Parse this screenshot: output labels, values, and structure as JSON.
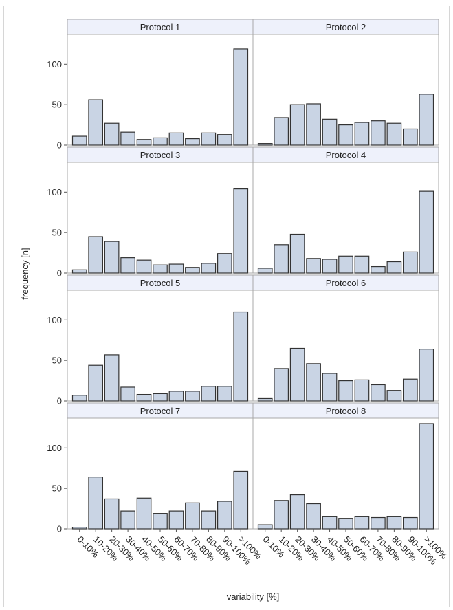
{
  "chart_data": {
    "type": "bar",
    "layout": "panel grid 2 columns x 4 rows, shared axes",
    "xlabel": "variability [%]",
    "ylabel": "frequency [n]",
    "categories": [
      "0-10%",
      "10-20%",
      "20-30%",
      "30-40%",
      "40-50%",
      "50-60%",
      "60-70%",
      "70-80%",
      "80-90%",
      "90-100%",
      ">100%"
    ],
    "ylim": [
      0,
      130
    ],
    "yticks": [
      0,
      50,
      100
    ],
    "grid": false,
    "legend": "none",
    "bar_color": "#c9d4e4",
    "bar_edge_color": "#333333",
    "strip_color": "#eef1fb",
    "panels": [
      {
        "title": "Protocol 1",
        "values": [
          11,
          56,
          27,
          16,
          7,
          9,
          15,
          8,
          15,
          13,
          119
        ]
      },
      {
        "title": "Protocol 2",
        "values": [
          2,
          34,
          50,
          51,
          32,
          25,
          28,
          30,
          27,
          20,
          63
        ]
      },
      {
        "title": "Protocol 3",
        "values": [
          4,
          45,
          39,
          19,
          16,
          10,
          11,
          7,
          12,
          24,
          104
        ]
      },
      {
        "title": "Protocol 4",
        "values": [
          6,
          35,
          48,
          18,
          17,
          21,
          21,
          8,
          14,
          26,
          101
        ]
      },
      {
        "title": "Protocol 5",
        "values": [
          7,
          44,
          57,
          17,
          8,
          9,
          12,
          12,
          18,
          18,
          110
        ]
      },
      {
        "title": "Protocol 6",
        "values": [
          3,
          40,
          65,
          46,
          34,
          25,
          26,
          20,
          13,
          27,
          64
        ]
      },
      {
        "title": "Protocol 7",
        "values": [
          2,
          64,
          37,
          22,
          38,
          19,
          22,
          32,
          22,
          34,
          71
        ]
      },
      {
        "title": "Protocol 8",
        "values": [
          5,
          35,
          42,
          31,
          15,
          13,
          15,
          14,
          15,
          14,
          130
        ]
      }
    ]
  }
}
